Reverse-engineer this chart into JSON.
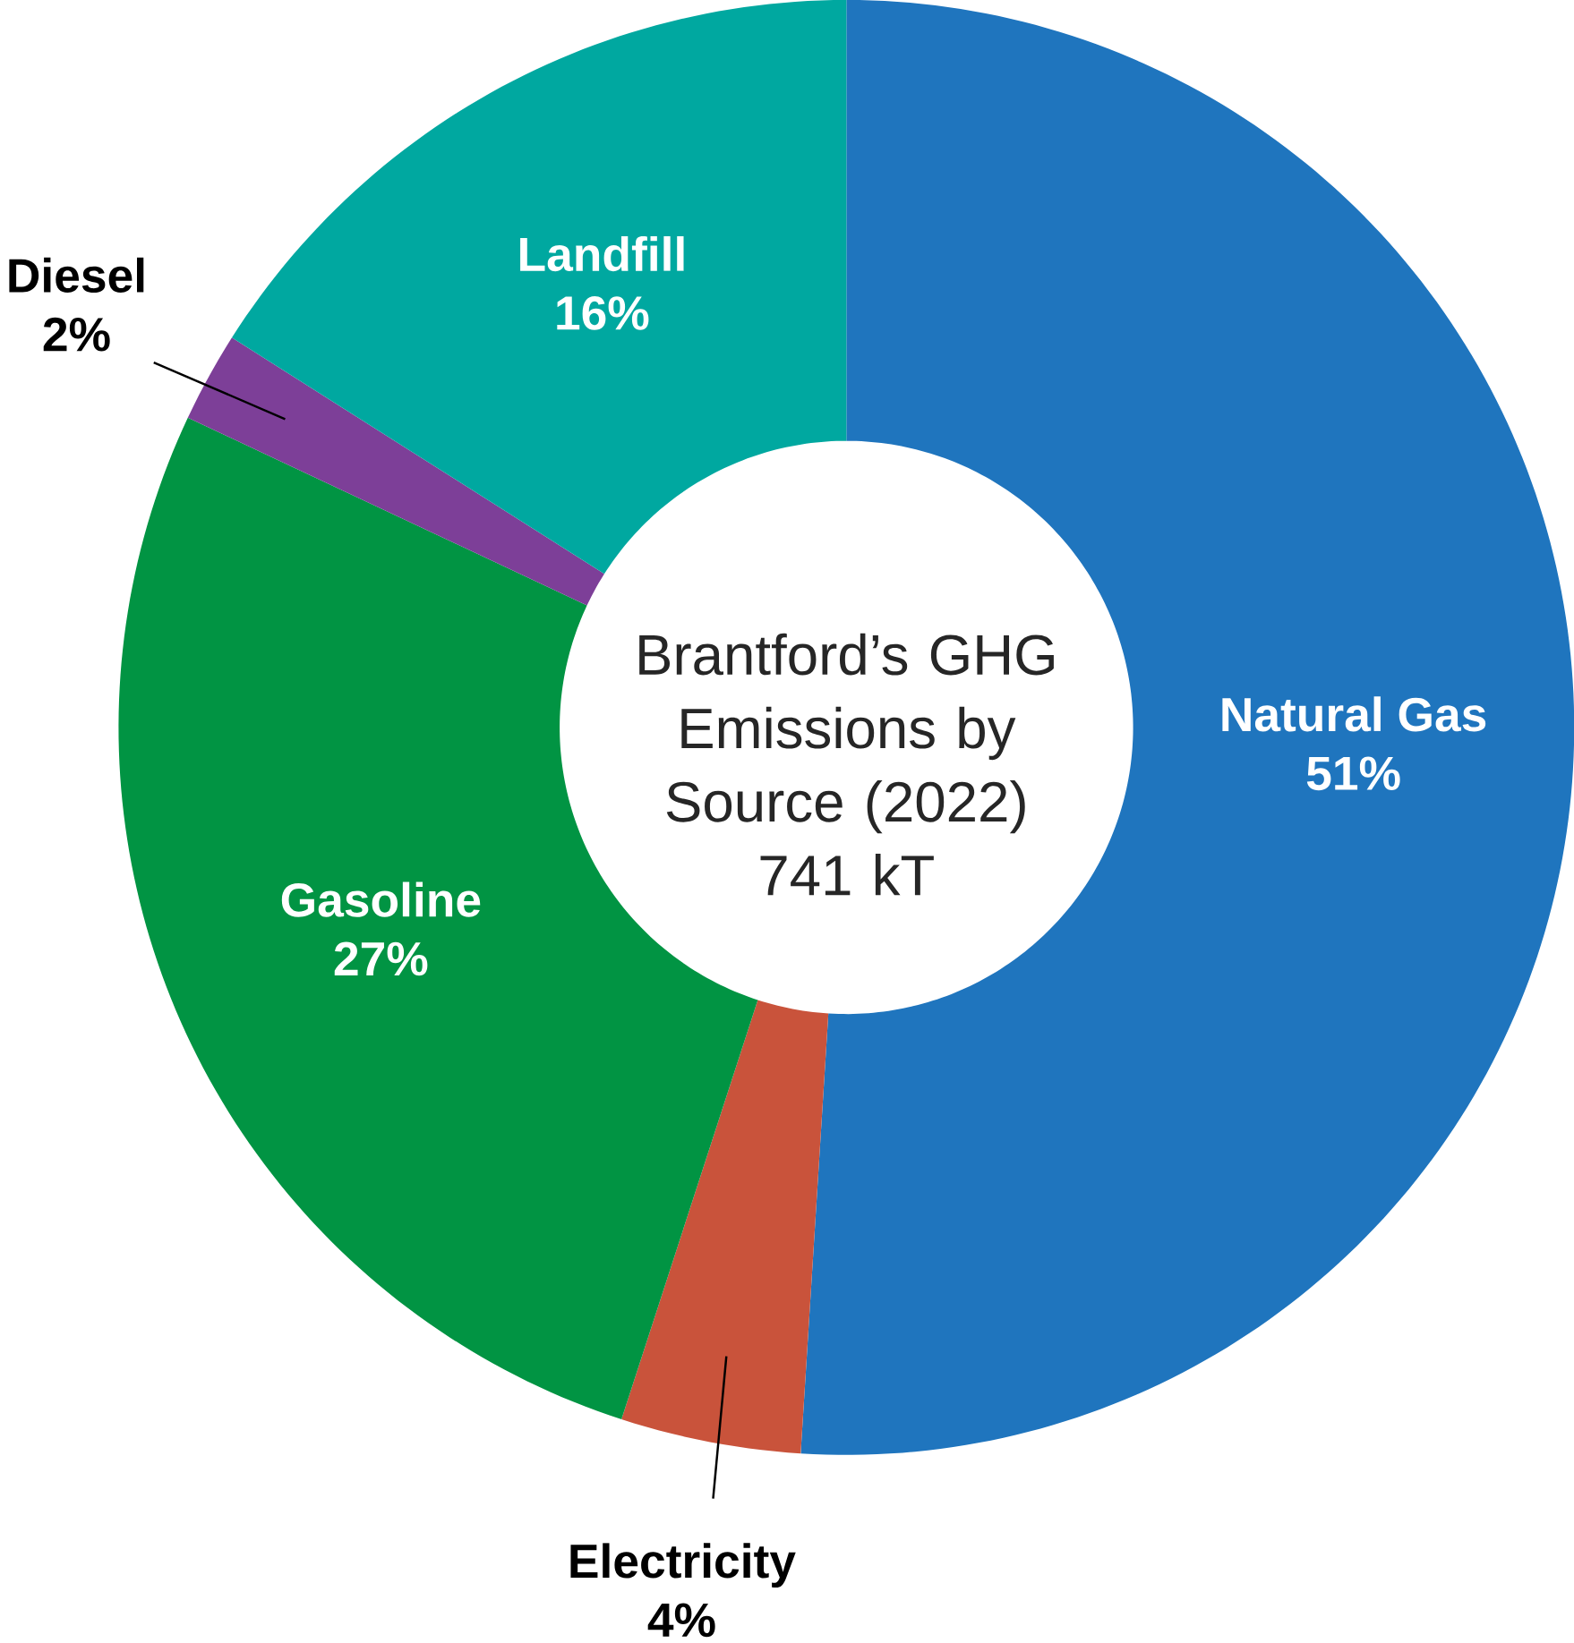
{
  "chart_data": {
    "type": "donut",
    "title": "Brantford’s GHG Emissions by Source (2022)",
    "subtitle": "741 kT",
    "categories": [
      "Natural Gas",
      "Electricity",
      "Gasoline",
      "Diesel",
      "Landfill"
    ],
    "values": [
      51,
      4,
      27,
      2,
      16
    ],
    "value_labels": [
      "51%",
      "4%",
      "27%",
      "2%",
      "16%"
    ],
    "colors": [
      "#1f75be",
      "#c9533b",
      "#019443",
      "#7d3f98",
      "#00a8a0"
    ]
  }
}
